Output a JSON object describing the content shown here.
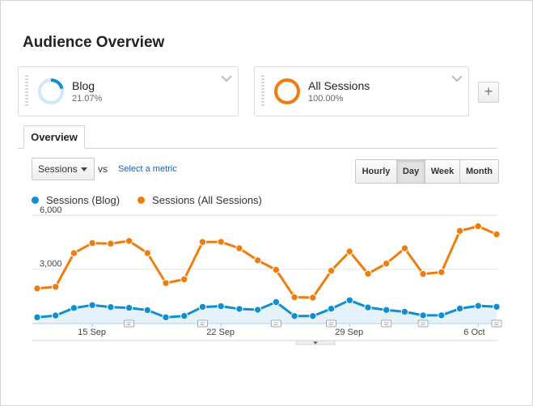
{
  "page": {
    "title": "Audience Overview"
  },
  "segments": [
    {
      "name": "Blog",
      "percent": "21.07%",
      "fraction": 0.2107,
      "color": "#0f8fd1",
      "track_color": "#cde8f6"
    },
    {
      "name": "All Sessions",
      "percent": "100.00%",
      "fraction": 1.0,
      "color": "#ef7d0e",
      "track_color": "#fbe0c6"
    }
  ],
  "add_segment": {
    "label": "+"
  },
  "tabs": [
    {
      "label": "Overview"
    }
  ],
  "metric_selector": {
    "selected": "Sessions",
    "vs_label": "vs",
    "select_metric_link": "Select a metric"
  },
  "granularity": {
    "options": [
      "Hourly",
      "Day",
      "Week",
      "Month"
    ],
    "active": "Day"
  },
  "colors": {
    "blog": "#0f8fd1",
    "all_sessions": "#ef7d0e",
    "grid": "#e6e6e6",
    "link": "#1a5fb4"
  },
  "chart_data": {
    "type": "line",
    "title": "",
    "legend": [
      "Sessions (Blog)",
      "Sessions (All Sessions)"
    ],
    "y_ticks": [
      3000,
      6000
    ],
    "y_tick_labels": [
      "3,000",
      "6,000"
    ],
    "ylim": [
      0,
      6000
    ],
    "x_labels": [
      {
        "index": 3,
        "label": "15 Sep"
      },
      {
        "index": 10,
        "label": "22 Sep"
      },
      {
        "index": 17,
        "label": "29 Sep"
      },
      {
        "index": 24,
        "label": "6 Oct"
      }
    ],
    "annotation_indices": [
      5,
      9,
      13,
      16,
      19,
      21,
      25
    ],
    "series": [
      {
        "name": "Sessions (Blog)",
        "color": "#0f8fd1",
        "area": true,
        "values": [
          300,
          400,
          820,
          980,
          870,
          830,
          700,
          300,
          380,
          880,
          920,
          770,
          720,
          1150,
          370,
          370,
          780,
          1250,
          850,
          710,
          610,
          410,
          410,
          790,
          940,
          890
        ]
      },
      {
        "name": "Sessions (All Sessions)",
        "color": "#ef7d0e",
        "area": false,
        "values": [
          1910,
          2000,
          3880,
          4440,
          4410,
          4560,
          3880,
          2210,
          2420,
          4500,
          4510,
          4150,
          3480,
          2950,
          1420,
          1400,
          2900,
          3970,
          2730,
          3300,
          4150,
          2720,
          2820,
          5120,
          5380,
          4930
        ]
      }
    ]
  }
}
